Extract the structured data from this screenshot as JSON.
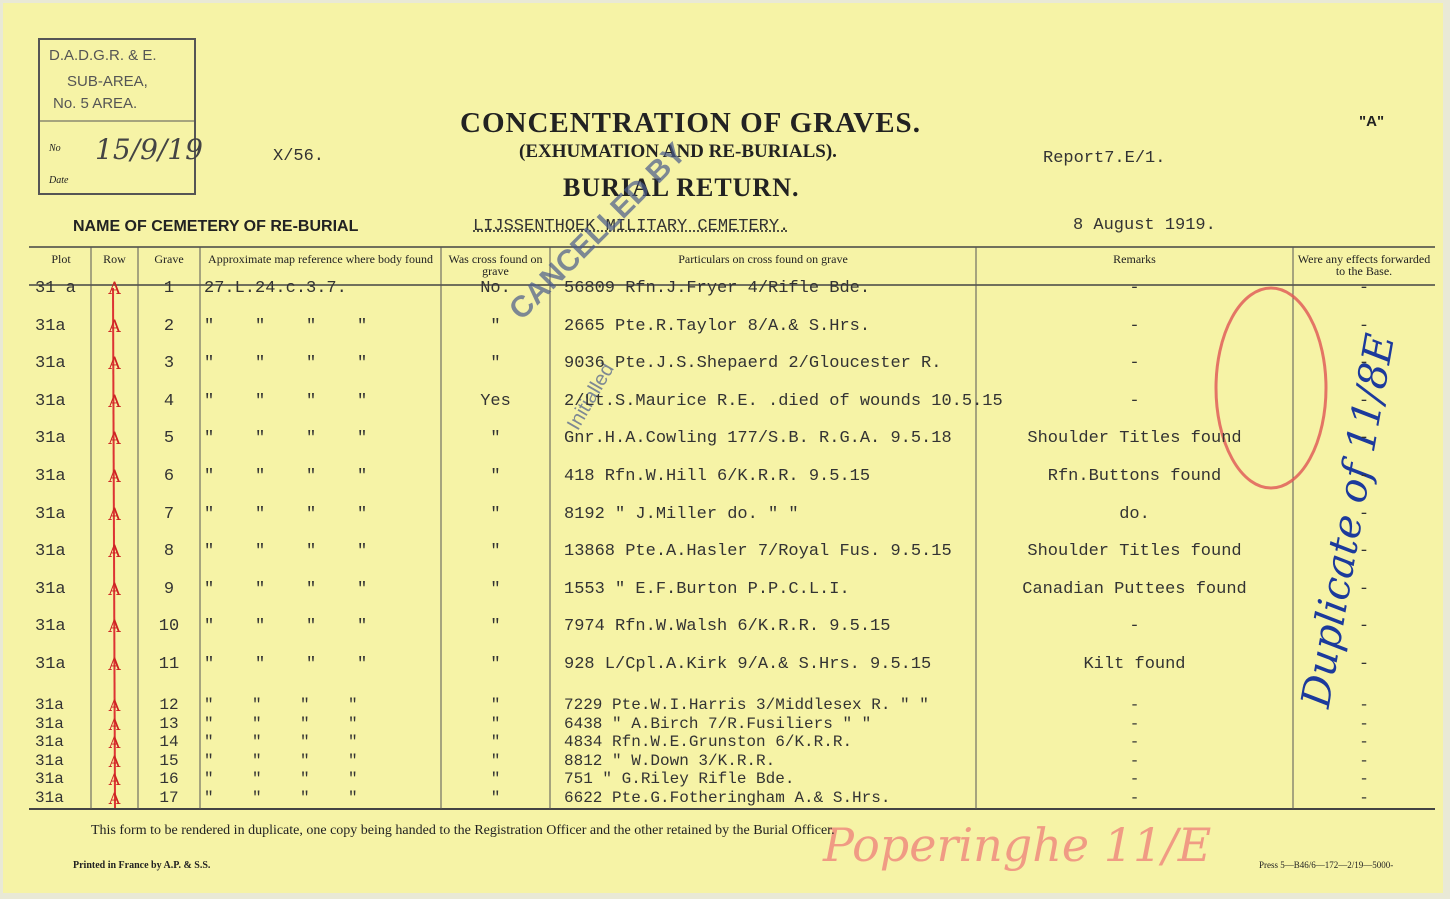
{
  "stamp": {
    "lines": [
      "D.A.D.G.R. & E.",
      "SUB-AREA,",
      "No. 5 AREA."
    ],
    "no_label": "No",
    "date_label": "Date",
    "handwritten": "15/9/19"
  },
  "header": {
    "file_ref": "X/56.",
    "title": "CONCENTRATION OF GRAVES.",
    "subtitle": "(EXHUMATION AND RE-BURIALS).",
    "form_title": "BURIAL RETURN.",
    "report": "Report7.E/1.",
    "form_letter": "\"A\"",
    "cemetery_label": "NAME OF CEMETERY OF RE-BURIAL",
    "cemetery": "LIJSSENTHOEK MILITARY CEMETERY.",
    "date": "8 August 1919."
  },
  "overprint": {
    "stamp": "CANCELLED BY",
    "initialled": "Initialled",
    "margin_note": "Duplicate of 11/8E",
    "footer_note": "Poperinghe 11/E"
  },
  "table": {
    "columns": [
      "Plot",
      "Row",
      "Grave",
      "Approximate map reference where body found",
      "Was cross found on grave",
      "Particulars on cross found on grave",
      "Remarks",
      "Were any effects forwarded to the Base."
    ],
    "rows": [
      [
        "31 a",
        "A",
        "1",
        "27.L.24.c.3.7.",
        "No.",
        "56809 Rfn.J.Fryer 4/Rifle Bde.",
        "-",
        "-"
      ],
      [
        "31a",
        "A",
        "2",
        "\"    \"    \"    \"",
        "\"",
        "2665 Pte.R.Taylor 8/A.& S.Hrs.",
        "-",
        "-"
      ],
      [
        "31a",
        "A",
        "3",
        "\"    \"    \"    \"",
        "\"",
        "9036 Pte.J.S.Shepaerd 2/Gloucester R.",
        "-",
        "-"
      ],
      [
        "31a",
        "A",
        "4",
        "\"    \"    \"    \"",
        "Yes",
        "2/Lt.S.Maurice R.E. .died of wounds 10.5.15",
        "-",
        "-"
      ],
      [
        "31a",
        "A",
        "5",
        "\"    \"    \"    \"",
        "\"",
        "Gnr.H.A.Cowling 177/S.B. R.G.A. 9.5.18",
        "Shoulder Titles found",
        "-"
      ],
      [
        "31a",
        "A",
        "6",
        "\"    \"    \"    \"",
        "\"",
        "418 Rfn.W.Hill 6/K.R.R. 9.5.15",
        "Rfn.Buttons found",
        "-"
      ],
      [
        "31a",
        "A",
        "7",
        "\"    \"    \"    \"",
        "\"",
        "8192 \" J.Miller do. \" \"",
        "do.",
        "-"
      ],
      [
        "31a",
        "A",
        "8",
        "\"    \"    \"    \"",
        "\"",
        "13868 Pte.A.Hasler 7/Royal Fus. 9.5.15",
        "Shoulder Titles found",
        "-"
      ],
      [
        "31a",
        "A",
        "9",
        "\"    \"    \"    \"",
        "\"",
        "1553 \" E.F.Burton P.P.C.L.I.",
        "Canadian Puttees found",
        "-"
      ],
      [
        "31a",
        "A",
        "10",
        "\"    \"    \"    \"",
        "\"",
        "7974 Rfn.W.Walsh 6/K.R.R. 9.5.15",
        "-",
        "-"
      ],
      [
        "31a",
        "A",
        "11",
        "\"    \"    \"    \"",
        "\"",
        "928 L/Cpl.A.Kirk 9/A.& S.Hrs. 9.5.15",
        "Kilt found",
        "-"
      ],
      [
        "31a",
        "A",
        "12",
        "\"    \"    \"    \"",
        "\"",
        "7229 Pte.W.I.Harris 3/Middlesex R. \" \"",
        "-",
        "-"
      ],
      [
        "31a",
        "A",
        "13",
        "\"    \"    \"    \"",
        "\"",
        "6438 \" A.Birch 7/R.Fusiliers \" \"",
        "-",
        "-"
      ],
      [
        "31a",
        "A",
        "14",
        "\"    \"    \"    \"",
        "\"",
        "4834 Rfn.W.E.Grunston 6/K.R.R.",
        "-",
        "-"
      ],
      [
        "31a",
        "A",
        "15",
        "\"    \"    \"    \"",
        "\"",
        "8812 \" W.Down 3/K.R.R.",
        "-",
        "-"
      ],
      [
        "31a",
        "A",
        "16",
        "\"    \"    \"    \"",
        "\"",
        "751 \" G.Riley Rifle Bde.",
        "-",
        "-"
      ],
      [
        "31a",
        "A",
        "17",
        "\"    \"    \"    \"",
        "\"",
        "6622 Pte.G.Fotheringham A.& S.Hrs.",
        "-",
        "-"
      ]
    ]
  },
  "footer": {
    "note": "This form to be rendered in duplicate, one copy being handed to the Registration Officer and the other retained by the Burial Officer.",
    "printer": "Printed in France by A.P. & S.S.",
    "press": "Press 5—B46/6—172—2/19—5000-"
  }
}
